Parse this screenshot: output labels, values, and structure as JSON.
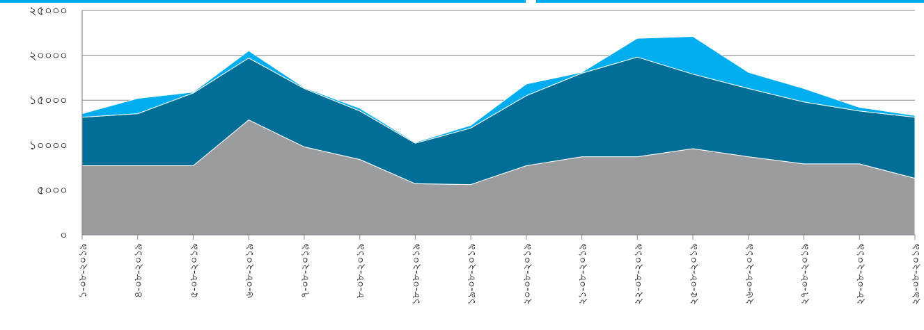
{
  "chart_data": {
    "type": "area",
    "stacked": true,
    "x": [
      "১-০৮-২০১৯",
      "৪-০৮-২০১৯",
      "৫-০৮-২০১৯",
      "৬-০৮-২০১৯",
      "৭-০৮-২০১৯",
      "৮-০৮-২০১৯",
      "১৮-০৮-২০১৯",
      "১৯-০৮-২০১৯",
      "২০-০৮-২০১৯",
      "২১-০৮-২০১৯",
      "২২-০৮-২০১৯",
      "২৫-০৮-২০১৯",
      "২৬-০৮-২০১৯",
      "২৭-০৮-২০১৯",
      "২৮-০৮-২০১৯",
      "২৯-০৮-২০১৯"
    ],
    "y_ticks": [
      "০",
      "৫০০০",
      "১০০০০",
      "১৫০০০",
      "২০০০০",
      "২৫০০০"
    ],
    "ylim": [
      0,
      25000
    ],
    "grid": true,
    "legend": "none",
    "series": [
      {
        "color": "#9b9ca0",
        "values": [
          7700,
          7700,
          7700,
          12800,
          9800,
          8400,
          5700,
          5600,
          7700,
          8700,
          8700,
          9600,
          8700,
          7900,
          7900,
          6300
        ]
      },
      {
        "color": "#006e96",
        "values": [
          5400,
          5800,
          8100,
          6900,
          6500,
          5400,
          4500,
          6300,
          7800,
          9300,
          11100,
          8300,
          7600,
          6900,
          5900,
          6800
        ]
      },
      {
        "color": "#00aeef",
        "values": [
          400,
          1700,
          100,
          800,
          100,
          300,
          100,
          300,
          1300,
          100,
          2100,
          4200,
          1800,
          1500,
          400,
          200
        ]
      }
    ]
  }
}
